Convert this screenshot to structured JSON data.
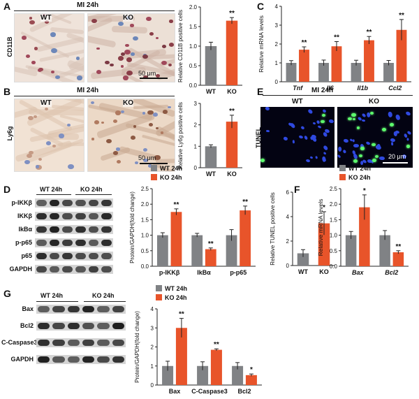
{
  "panels": {
    "A": {
      "label": "A",
      "title": "MI 24h",
      "stain": "CD11B",
      "wt": "WT",
      "ko": "KO",
      "scale": "50 μm"
    },
    "B": {
      "label": "B",
      "title": "MI 24h",
      "stain": "Ly6g",
      "wt": "WT",
      "ko": "KO",
      "scale": "50 μm"
    },
    "C": {
      "label": "C"
    },
    "D": {
      "label": "D",
      "wt_header": "WT 24h",
      "ko_header": "KO 24h",
      "rows": [
        "p-IKKβ",
        "IKKβ",
        "IkBα",
        "p-p65",
        "p65",
        "GAPDH"
      ]
    },
    "E": {
      "label": "E",
      "title": "MI 24h",
      "stain": "TUNEL",
      "wt": "WT",
      "ko": "KO",
      "scale": "20 μm"
    },
    "F": {
      "label": "F"
    },
    "G": {
      "label": "G",
      "wt_header": "WT 24h",
      "ko_header": "KO 24h",
      "rows": [
        "Bax",
        "Bcl2",
        "C-Caspase3",
        "GAPDH"
      ]
    }
  },
  "colors": {
    "wt": "#808285",
    "ko": "#e8542a",
    "axis": "#222222"
  },
  "chart_data": [
    {
      "id": "A",
      "type": "bar",
      "categories": [
        "WT",
        "KO"
      ],
      "values": [
        1.0,
        1.65
      ],
      "errors": [
        0.1,
        0.08
      ],
      "sig": [
        "",
        "**"
      ],
      "ylabel": "Relative CD11B positive cells",
      "ylim": [
        0,
        2.0
      ],
      "yticks": [
        "0.0",
        "0.5",
        "1.0",
        "1.5",
        "2.0"
      ]
    },
    {
      "id": "B",
      "type": "bar",
      "categories": [
        "WT",
        "KO"
      ],
      "values": [
        1.0,
        2.15
      ],
      "errors": [
        0.07,
        0.3
      ],
      "sig": [
        "",
        "**"
      ],
      "ylabel": "Relative Ly6g positive cells",
      "ylim": [
        0,
        3
      ],
      "yticks": [
        "0",
        "1",
        "2",
        "3"
      ]
    },
    {
      "id": "C",
      "type": "bar",
      "categories": [
        "Tnf",
        "Il6",
        "Il1b",
        "Ccl2"
      ],
      "series": [
        {
          "name": "WT 24h",
          "values": [
            1.0,
            1.0,
            1.0,
            1.0
          ],
          "errors": [
            0.12,
            0.15,
            0.14,
            0.13
          ]
        },
        {
          "name": "KO 24h",
          "values": [
            1.7,
            1.88,
            2.2,
            2.75
          ],
          "errors": [
            0.15,
            0.25,
            0.2,
            0.55
          ]
        }
      ],
      "sig": [
        "**",
        "**",
        "**",
        "**"
      ],
      "ylabel": "Relative mRNA levels",
      "ylim": [
        0,
        4
      ],
      "yticks": [
        "0",
        "1",
        "2",
        "3",
        "4"
      ],
      "legend": "top-left"
    },
    {
      "id": "D",
      "type": "bar",
      "categories": [
        "p-IKKβ",
        "IkBα",
        "p-p65"
      ],
      "series": [
        {
          "name": "WT 24h",
          "values": [
            1.0,
            1.0,
            1.0
          ],
          "errors": [
            0.08,
            0.06,
            0.18
          ]
        },
        {
          "name": "KO 24h",
          "values": [
            1.75,
            0.55,
            1.8
          ],
          "errors": [
            0.1,
            0.04,
            0.14
          ]
        }
      ],
      "sig": [
        "**",
        "**",
        "**"
      ],
      "ylabel": "Protein/GAPDH(fold change)",
      "ylim": [
        0,
        2.5
      ],
      "yticks": [
        "0.0",
        "0.5",
        "1.0",
        "1.5",
        "2.0",
        "2.5"
      ],
      "legend": "top-left"
    },
    {
      "id": "E",
      "type": "bar",
      "categories": [
        "WT",
        "KO"
      ],
      "values": [
        1.0,
        3.45
      ],
      "errors": [
        0.3,
        0.95
      ],
      "sig": [
        "",
        "*"
      ],
      "ylabel": "Relative TUNEL positive cells",
      "ylim": [
        0,
        6
      ],
      "yticks": [
        "0",
        "2",
        "4",
        "6"
      ]
    },
    {
      "id": "F",
      "type": "bar",
      "categories": [
        "Bax",
        "Bcl2"
      ],
      "series": [
        {
          "name": "WT 24h",
          "values": [
            1.0,
            1.0
          ],
          "errors": [
            0.12,
            0.15
          ]
        },
        {
          "name": "KO 24h",
          "values": [
            1.9,
            0.45
          ],
          "errors": [
            0.4,
            0.05
          ]
        }
      ],
      "sig": [
        "*",
        "**"
      ],
      "ylabel": "Relative mRNA levels",
      "ylim": [
        0,
        2.5
      ],
      "yticks": [
        "0.0",
        "0.5",
        "1.0",
        "1.5",
        "2.0",
        "2.5"
      ],
      "legend": "top-left"
    },
    {
      "id": "G",
      "type": "bar",
      "categories": [
        "Bax",
        "C-Caspase3",
        "Bcl2"
      ],
      "series": [
        {
          "name": "WT 24h",
          "values": [
            1.0,
            1.0,
            1.0
          ],
          "errors": [
            0.25,
            0.22,
            0.18
          ]
        },
        {
          "name": "KO 24h",
          "values": [
            3.0,
            1.85,
            0.52
          ],
          "errors": [
            0.5,
            0.05,
            0.06
          ]
        }
      ],
      "sig": [
        "**",
        "**",
        "*"
      ],
      "ylabel": "Protein/GAPDH(fold change)",
      "ylim": [
        0,
        4
      ],
      "yticks": [
        "0",
        "1",
        "2",
        "3",
        "4"
      ],
      "legend": "top-left"
    }
  ]
}
